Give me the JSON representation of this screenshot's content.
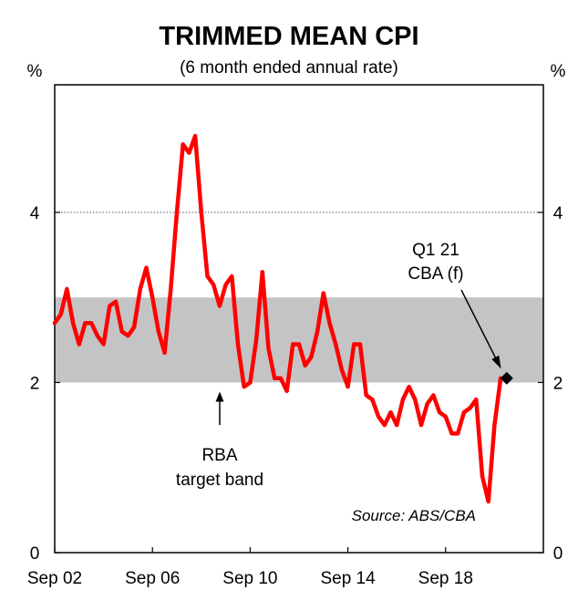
{
  "chart_data": {
    "type": "line",
    "title": "TRIMMED MEAN CPI",
    "subtitle": "(6 month ended annual rate)",
    "ylabel_left": "%",
    "ylabel_right": "%",
    "ylim": [
      0,
      5.5
    ],
    "yticks": [
      0,
      2,
      4
    ],
    "x_tick_labels": [
      "Sep 02",
      "Sep 06",
      "Sep 10",
      "Sep 14",
      "Sep 18"
    ],
    "x_tick_positions": [
      0,
      4,
      8,
      12,
      16
    ],
    "xlim": [
      0,
      20
    ],
    "target_band": {
      "low": 2,
      "high": 3,
      "label_line1": "RBA",
      "label_line2": "target band"
    },
    "gridline_at": 4,
    "series": [
      {
        "name": "Trimmed mean CPI (6 month ended annual rate)",
        "color": "#ff0000",
        "x": [
          0.0,
          0.25,
          0.5,
          0.75,
          1.0,
          1.25,
          1.5,
          1.75,
          2.0,
          2.25,
          2.5,
          2.75,
          3.0,
          3.25,
          3.5,
          3.75,
          4.0,
          4.25,
          4.5,
          4.75,
          5.0,
          5.25,
          5.5,
          5.75,
          6.0,
          6.25,
          6.5,
          6.75,
          7.0,
          7.25,
          7.5,
          7.75,
          8.0,
          8.25,
          8.5,
          8.75,
          9.0,
          9.25,
          9.5,
          9.75,
          10.0,
          10.25,
          10.5,
          10.75,
          11.0,
          11.25,
          11.5,
          11.75,
          12.0,
          12.25,
          12.5,
          12.75,
          13.0,
          13.25,
          13.5,
          13.75,
          14.0,
          14.25,
          14.5,
          14.75,
          15.0,
          15.25,
          15.5,
          15.75,
          16.0,
          16.25,
          16.5,
          16.75,
          17.0,
          17.25,
          17.5,
          17.75,
          18.0,
          18.25
        ],
        "values": [
          2.7,
          2.8,
          3.1,
          2.7,
          2.45,
          2.7,
          2.7,
          2.55,
          2.45,
          2.9,
          2.95,
          2.6,
          2.55,
          2.65,
          3.1,
          3.35,
          3.0,
          2.6,
          2.35,
          3.1,
          4.0,
          4.8,
          4.7,
          4.9,
          4.0,
          3.25,
          3.15,
          2.9,
          3.15,
          3.25,
          2.45,
          1.95,
          2.0,
          2.5,
          3.3,
          2.4,
          2.05,
          2.05,
          1.9,
          2.45,
          2.45,
          2.2,
          2.3,
          2.6,
          3.05,
          2.7,
          2.45,
          2.15,
          1.95,
          2.45,
          2.45,
          1.85,
          1.8,
          1.6,
          1.5,
          1.65,
          1.5,
          1.8,
          1.95,
          1.8,
          1.5,
          1.75,
          1.85,
          1.65,
          1.6,
          1.4,
          1.4,
          1.65,
          1.7,
          1.8,
          0.9,
          0.6,
          1.5,
          2.05
        ]
      }
    ],
    "forecast_point": {
      "x": 18.5,
      "value": 2.05,
      "label_line1": "Q1 21",
      "label_line2": "CBA (f)",
      "color": "#000000"
    },
    "source": "Source: ABS/CBA"
  }
}
